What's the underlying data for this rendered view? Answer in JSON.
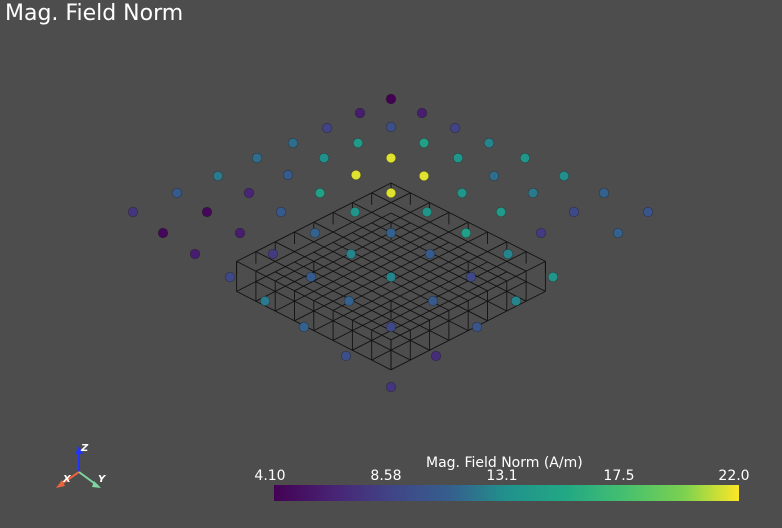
{
  "title": "Mag. Field Norm",
  "axes_widget": {
    "x": "X",
    "y": "Y",
    "z": "Z",
    "x_color": "#e8643a",
    "y_color": "#7fd6a0",
    "z_color": "#2233ff"
  },
  "colorbar": {
    "title": "Mag. Field Norm (A/m)",
    "ticks": [
      "4.10",
      "8.58",
      "13.1",
      "17.5",
      "22.0"
    ],
    "colormap": "viridis",
    "range": [
      4.1,
      22.0
    ]
  },
  "points": [
    {
      "v": 4.1
    },
    {
      "v": 6.0
    },
    {
      "v": 6.0
    },
    {
      "v": 8.5
    },
    {
      "v": 9.5
    },
    {
      "v": 8.5
    },
    {
      "v": 11.5
    },
    {
      "v": 14.0
    },
    {
      "v": 14.5
    },
    {
      "v": 12.5
    },
    {
      "v": 11.5
    },
    {
      "v": 13.0
    },
    {
      "v": 21.5
    },
    {
      "v": 13.5
    },
    {
      "v": 13.5
    },
    {
      "v": 12.0
    },
    {
      "v": 10.5
    },
    {
      "v": 21.5
    },
    {
      "v": 21.5
    },
    {
      "v": 11.5
    },
    {
      "v": 13.0
    },
    {
      "v": 10.5
    },
    {
      "v": 6.5
    },
    {
      "v": 14.5
    },
    {
      "v": 21.5
    },
    {
      "v": 13.5
    },
    {
      "v": 12.0
    },
    {
      "v": 11.0
    },
    {
      "v": 7.5
    },
    {
      "v": 4.5
    },
    {
      "v": 10.5
    },
    {
      "v": 13.5
    },
    {
      "v": 13.5
    },
    {
      "v": 14.0
    },
    {
      "v": 9.0
    },
    {
      "v": 10.0
    },
    {
      "v": 4.5
    },
    {
      "v": 6.0
    },
    {
      "v": 11.0
    },
    {
      "v": 11.0
    },
    {
      "v": 14.5
    },
    {
      "v": 8.0
    },
    {
      "v": 11.0
    },
    {
      "v": 6.0
    },
    {
      "v": 8.0
    },
    {
      "v": 12.5
    },
    {
      "v": 10.5
    },
    {
      "v": 12.5
    },
    {
      "v": 9.0
    },
    {
      "v": 10.5
    },
    {
      "v": 12.5
    },
    {
      "v": 9.0
    },
    {
      "v": 13.5
    },
    {
      "v": 12.0
    },
    {
      "v": 11.0
    },
    {
      "v": 10.5
    },
    {
      "v": 12.5
    },
    {
      "v": 11.0
    },
    {
      "v": 9.0
    },
    {
      "v": 10.0
    },
    {
      "v": 9.5
    },
    {
      "v": 7.0
    },
    {
      "v": 7.5
    },
    {
      "v": 5.5
    }
  ]
}
